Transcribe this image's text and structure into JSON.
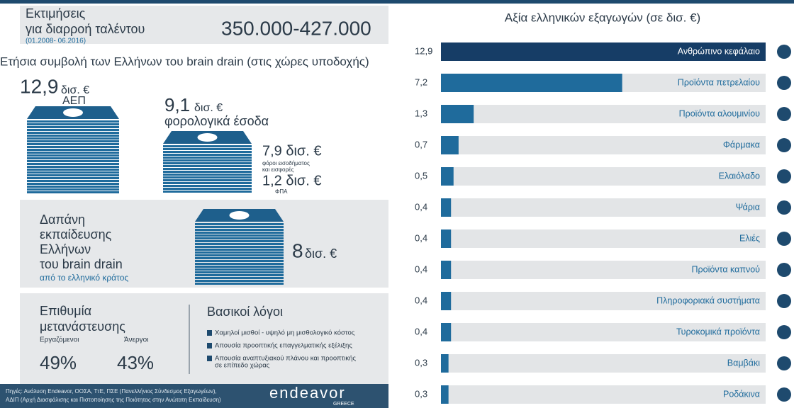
{
  "header": {
    "title_line1": "Εκτιμήσεις",
    "title_line2": "για διαρροή ταλέντου",
    "period": "(01.2008- 06.2016)",
    "value": "350.000-427.000"
  },
  "contribution": {
    "title": "Ετήσια συμβολή των Ελλήνων του brain drain (στις χώρες υποδοχής)",
    "gdp": {
      "value": "12,9",
      "unit": "δισ. €",
      "label": "ΑΕΠ"
    },
    "tax": {
      "value": "9,1",
      "unit": "δισ. €",
      "label": "φορολογικά έσοδα"
    },
    "income_tax": {
      "value": "7,9 δισ. €",
      "label_lines": [
        "φόροι εισοδήματος",
        "και εισφορές"
      ]
    },
    "vat": {
      "value": "1,2 δισ. €",
      "label": "ΦΠΑ"
    }
  },
  "education": {
    "lines": [
      "Δαπάνη",
      "εκπαίδευσης",
      "Ελλήνων",
      "του brain drain"
    ],
    "note": "από το ελληνικό κράτος",
    "value": "8",
    "unit": "δισ. €"
  },
  "emigration": {
    "title_lines": [
      "Επιθυμία",
      "μετανάστευσης"
    ],
    "employed": {
      "label": "Εργαζόμενοι",
      "value": "49%"
    },
    "unemployed": {
      "label": "Άνεργοι",
      "value": "43%"
    },
    "reasons_title": "Βασικοί λόγοι",
    "reasons": [
      [
        "Χαμηλοί μισθοί - υψηλό μη μισθολογικό κόστος"
      ],
      [
        "Απουσία προοπτικής επαγγελματικής εξέλιξης"
      ],
      [
        "Απουσία αναπτυξιακού πλάνου και προοπτικής",
        "σε επίπεδο χώρας"
      ]
    ]
  },
  "footer": {
    "source_lines": [
      "Πηγές: Ανάλυση Endeavor, ΟΟΣΑ, ΤτΕ, ΠΣΕ (Πανελλήνιος Σύνδεσμος Εξαγωγέων),",
      "ΑΔΙΠ (Αρχή Διασφάλισης και Πιστοποίησης της Ποιότητας στην Ανώτατη Εκπαίδευση)"
    ],
    "logo": "endeavor",
    "logo_sub": "GREECE"
  },
  "chart_data": {
    "type": "bar",
    "orientation": "horizontal",
    "title": "Αξία ελληνικών εξαγωγών (σε δισ. €)",
    "categories": [
      "Ανθρώπινο κεφάλαιο",
      "Προϊόντα πετρελαίου",
      "Προϊόντα αλουμινίου",
      "Φάρμακα",
      "Ελαιόλαδο",
      "Ψάρια",
      "Ελιές",
      "Προϊόντα καπνού",
      "Πληροφοριακά συστήματα",
      "Τυροκομικά προϊόντα",
      "Βαμβάκι",
      "Ροδάκινα"
    ],
    "values": [
      12.9,
      7.2,
      1.3,
      0.7,
      0.5,
      0.4,
      0.4,
      0.4,
      0.4,
      0.4,
      0.3,
      0.3
    ],
    "value_labels": [
      "12,9",
      "7,2",
      "1,3",
      "0,7",
      "0,5",
      "0,4",
      "0,4",
      "0,4",
      "0,4",
      "0,4",
      "0,3",
      "0,3"
    ],
    "color": "#1f6b9c",
    "highlight_color": "#163d66",
    "track_color": "#e3e5e7"
  }
}
